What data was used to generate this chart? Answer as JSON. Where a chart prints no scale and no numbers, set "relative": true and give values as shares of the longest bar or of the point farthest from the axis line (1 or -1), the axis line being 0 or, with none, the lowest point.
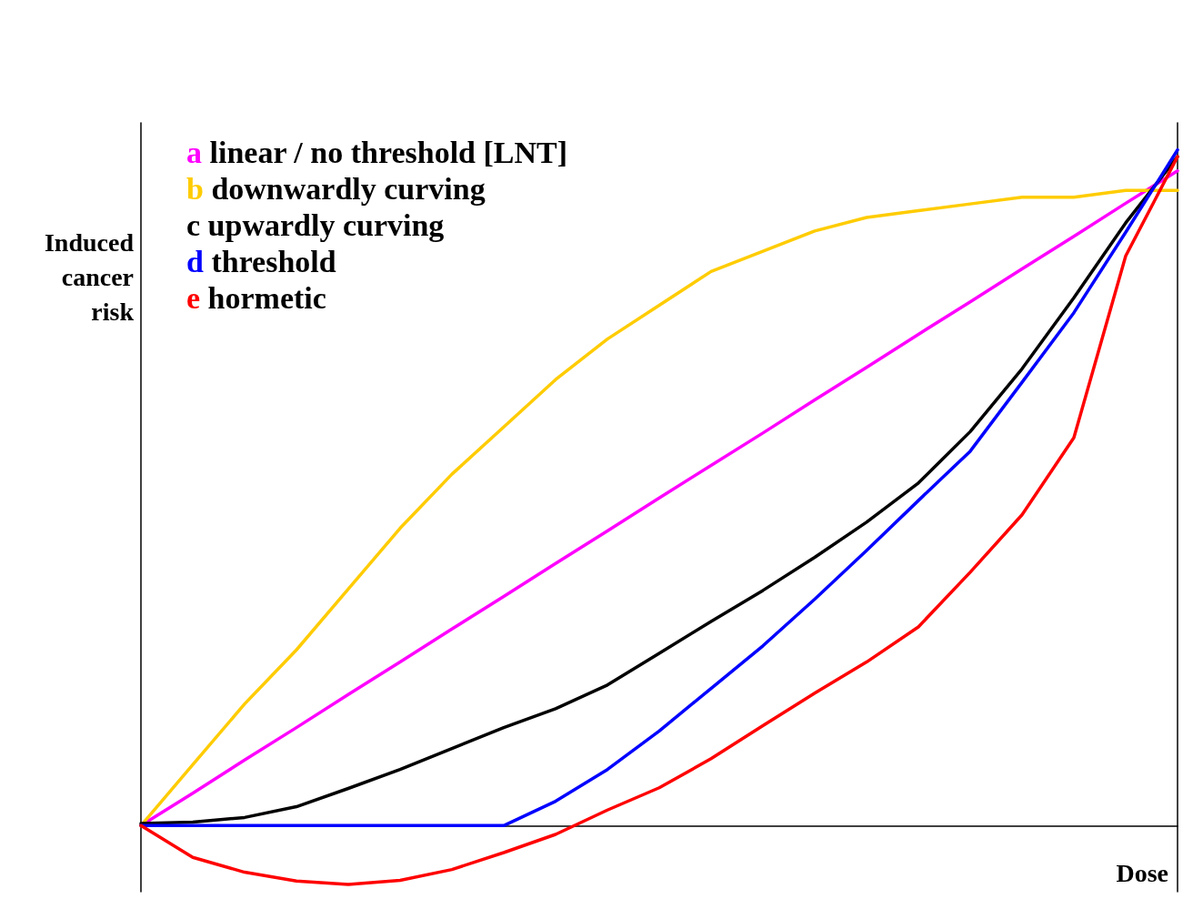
{
  "chart_data": {
    "type": "line",
    "relative": true,
    "xlabel": "Dose",
    "ylabel": "Induced\ncancer\nrisk",
    "legend": "top left",
    "grid": false,
    "marker": "none",
    "line_style": "solid",
    "categories": [
      null,
      null,
      null,
      null,
      null,
      null,
      null,
      null,
      null,
      null,
      null,
      null,
      null,
      null,
      null,
      null,
      null,
      null,
      null,
      null,
      null
    ],
    "series": [
      {
        "name": "a linear / no threshold [LNT]",
        "color": "#ff00ff",
        "values": [
          0,
          0.048,
          0.097,
          0.145,
          0.194,
          0.242,
          0.291,
          0.339,
          0.388,
          0.436,
          0.485,
          0.533,
          0.581,
          0.63,
          0.678,
          0.727,
          0.775,
          0.824,
          0.872,
          0.921,
          0.969
        ]
      },
      {
        "name": "b downwardly curving",
        "color": "#ffcc00",
        "values": [
          0,
          0.09,
          0.18,
          0.26,
          0.35,
          0.44,
          0.52,
          0.59,
          0.66,
          0.72,
          0.77,
          0.82,
          0.85,
          0.88,
          0.9,
          0.91,
          0.92,
          0.93,
          0.93,
          0.94,
          0.94
        ]
      },
      {
        "name": "c upwardly curving",
        "color": "#000000",
        "values": [
          0.003,
          0.005,
          0.012,
          0.028,
          0.055,
          0.083,
          0.114,
          0.145,
          0.173,
          0.208,
          0.255,
          0.302,
          0.348,
          0.397,
          0.449,
          0.507,
          0.583,
          0.676,
          0.781,
          0.892,
          0.99
        ]
      },
      {
        "name": "d threshold",
        "color": "#0000ff",
        "values": [
          0,
          0,
          0,
          0,
          0,
          0,
          0,
          0,
          0.036,
          0.083,
          0.14,
          0.203,
          0.266,
          0.335,
          0.407,
          0.481,
          0.554,
          0.656,
          0.759,
          0.878,
          1
        ]
      },
      {
        "name": "e hormetic",
        "color": "#ff0000",
        "values": [
          0,
          -0.047,
          -0.069,
          -0.082,
          -0.087,
          -0.081,
          -0.065,
          -0.04,
          -0.013,
          0.023,
          0.056,
          0.099,
          0.148,
          0.196,
          0.242,
          0.294,
          0.375,
          0.46,
          0.574,
          0.843,
          0.99
        ]
      }
    ]
  }
}
